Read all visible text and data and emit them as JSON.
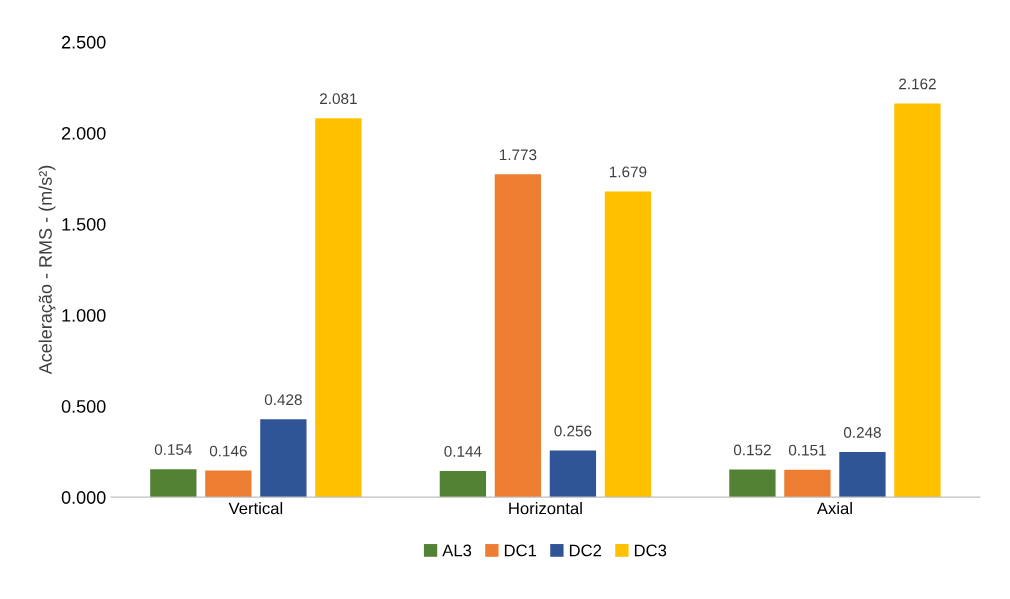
{
  "chart_data": {
    "type": "bar",
    "ylabel": "Aceleração - RMS - (m/s²)",
    "categories": [
      "Vertical",
      "Horizontal",
      "Axial"
    ],
    "series": [
      {
        "name": "AL3",
        "color": "#548235",
        "values": [
          0.154,
          0.144,
          0.152
        ]
      },
      {
        "name": "DC1",
        "color": "#ed7d31",
        "values": [
          0.146,
          1.773,
          0.151
        ]
      },
      {
        "name": "DC2",
        "color": "#2f5597",
        "values": [
          0.428,
          0.256,
          0.248
        ]
      },
      {
        "name": "DC3",
        "color": "#ffc000",
        "values": [
          2.081,
          1.679,
          2.162
        ]
      }
    ],
    "ylim": [
      0,
      2.5
    ],
    "yticks": [
      {
        "value": 0,
        "label": "0.000"
      },
      {
        "value": 0.5,
        "label": "0.500"
      },
      {
        "value": 1.0,
        "label": "1.000"
      },
      {
        "value": 1.5,
        "label": "1.500"
      },
      {
        "value": 2.0,
        "label": "2.000"
      },
      {
        "value": 2.5,
        "label": "2.500"
      }
    ],
    "data_labels": true,
    "grid": false,
    "legend": "bottom"
  }
}
